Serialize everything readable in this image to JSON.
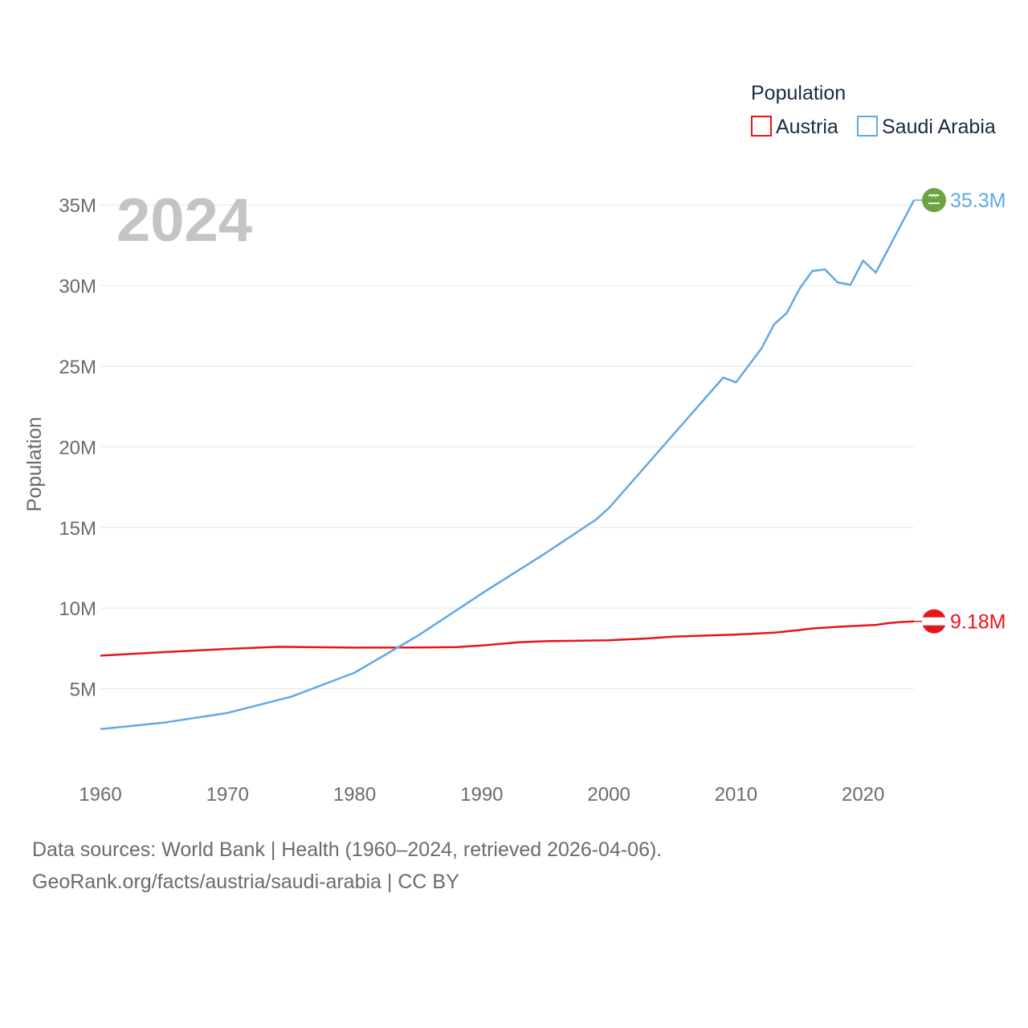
{
  "chart_data": {
    "type": "line",
    "year_label": "2024",
    "ylabel": "Population",
    "xlabel": "",
    "xlim": [
      1960,
      2024
    ],
    "ylim": [
      0,
      37500000
    ],
    "x_ticks": [
      {
        "value": 1960,
        "label": "1960"
      },
      {
        "value": 1970,
        "label": "1970"
      },
      {
        "value": 1980,
        "label": "1980"
      },
      {
        "value": 1990,
        "label": "1990"
      },
      {
        "value": 2000,
        "label": "2000"
      },
      {
        "value": 2010,
        "label": "2010"
      },
      {
        "value": 2020,
        "label": "2020"
      }
    ],
    "y_ticks": [
      {
        "value": 5000000,
        "label": "5M"
      },
      {
        "value": 10000000,
        "label": "10M"
      },
      {
        "value": 15000000,
        "label": "15M"
      },
      {
        "value": 20000000,
        "label": "20M"
      },
      {
        "value": 25000000,
        "label": "25M"
      },
      {
        "value": 30000000,
        "label": "30M"
      },
      {
        "value": 35000000,
        "label": "35M"
      }
    ],
    "legend": {
      "title": "Population",
      "placement": "top-right",
      "entries": [
        {
          "name": "Austria",
          "color": "#e8141b"
        },
        {
          "name": "Saudi Arabia",
          "color": "#62a8e5"
        }
      ]
    },
    "series": [
      {
        "name": "Austria",
        "color": "#e8141b",
        "end_label": "9.18M",
        "flag": "austria-flag-icon",
        "points": [
          [
            1960,
            7050000
          ],
          [
            1965,
            7270000
          ],
          [
            1970,
            7470000
          ],
          [
            1974,
            7600000
          ],
          [
            1980,
            7550000
          ],
          [
            1985,
            7560000
          ],
          [
            1988,
            7580000
          ],
          [
            1990,
            7680000
          ],
          [
            1993,
            7890000
          ],
          [
            1995,
            7950000
          ],
          [
            2000,
            8010000
          ],
          [
            2003,
            8120000
          ],
          [
            2005,
            8230000
          ],
          [
            2010,
            8360000
          ],
          [
            2013,
            8480000
          ],
          [
            2015,
            8640000
          ],
          [
            2016,
            8740000
          ],
          [
            2018,
            8840000
          ],
          [
            2020,
            8920000
          ],
          [
            2021,
            8960000
          ],
          [
            2022,
            9070000
          ],
          [
            2023,
            9140000
          ],
          [
            2024,
            9180000
          ]
        ]
      },
      {
        "name": "Saudi Arabia",
        "color": "#62a8e5",
        "end_label": "35.3M",
        "flag": "saudi-arabia-flag-icon",
        "points": [
          [
            1960,
            2500000
          ],
          [
            1965,
            2900000
          ],
          [
            1970,
            3500000
          ],
          [
            1975,
            4500000
          ],
          [
            1980,
            6000000
          ],
          [
            1985,
            8300000
          ],
          [
            1990,
            10900000
          ],
          [
            1995,
            13400000
          ],
          [
            1999,
            15500000
          ],
          [
            2000,
            16200000
          ],
          [
            2005,
            20700000
          ],
          [
            2009,
            24300000
          ],
          [
            2010,
            24000000
          ],
          [
            2012,
            26100000
          ],
          [
            2013,
            27600000
          ],
          [
            2014,
            28300000
          ],
          [
            2015,
            29800000
          ],
          [
            2016,
            30900000
          ],
          [
            2017,
            31000000
          ],
          [
            2018,
            30200000
          ],
          [
            2019,
            30050000
          ],
          [
            2020,
            31550000
          ],
          [
            2021,
            30800000
          ],
          [
            2022,
            32300000
          ],
          [
            2023,
            33800000
          ],
          [
            2024,
            35300000
          ]
        ]
      }
    ]
  },
  "footer": {
    "sources": "Data sources: World Bank | Health (1960–2024, retrieved 2026-04-06).",
    "attribution": "GeoRank.org/facts/austria/saudi-arabia | CC BY"
  }
}
